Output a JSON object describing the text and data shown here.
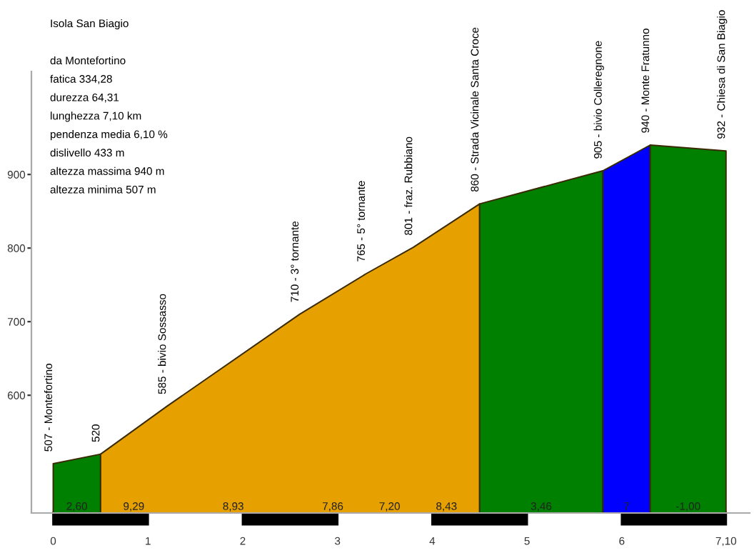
{
  "chart_data": {
    "type": "area",
    "title": "Isola San Biagio",
    "series": [
      {
        "color": "#008000",
        "x": [
          0,
          0.5
        ],
        "values": [
          507,
          520
        ]
      },
      {
        "color": "#e6a000",
        "x": [
          0.5,
          1.2,
          2.6,
          3.3,
          3.8,
          4.5
        ],
        "values": [
          520,
          585,
          710,
          765,
          801,
          860
        ]
      },
      {
        "color": "#008000",
        "x": [
          4.5,
          5.8
        ],
        "values": [
          860,
          905
        ]
      },
      {
        "color": "#0000ff",
        "x": [
          5.8,
          6.3
        ],
        "values": [
          905,
          940
        ]
      },
      {
        "color": "#008000",
        "x": [
          6.3,
          7.1
        ],
        "values": [
          940,
          932
        ]
      }
    ],
    "xlim": [
      -0.23,
      7.35
    ],
    "ylim": [
      440,
      1040
    ],
    "xticks": [
      0,
      1,
      2,
      3,
      4,
      5,
      6,
      {
        "value": 7.1,
        "label": "7,10"
      }
    ],
    "yticks": [
      600,
      700,
      800,
      900
    ],
    "grid": false,
    "legend": false,
    "annotations": [
      "da Montefortino",
      "fatica 334,28",
      "durezza 64,31",
      "lunghezza 7,10 km",
      "pendenza media 6,10 %",
      "dislivello 433 m",
      "altezza massima 940 m",
      "altezza minima 507 m",
      {
        "text": "507 - Montefortino",
        "x": 0,
        "y": 507
      },
      {
        "text": "520",
        "x": 0.5,
        "y": 520
      },
      {
        "text": "585 - bivio Sossasso",
        "x": 1.2,
        "y": 585
      },
      {
        "text": "710 - 3° tornante",
        "x": 2.6,
        "y": 710
      },
      {
        "text": "765 - 5° tornante",
        "x": 3.3,
        "y": 765
      },
      {
        "text": "801 - fraz. Rubbiano",
        "x": 3.8,
        "y": 801
      },
      {
        "text": "860 - Strada Vicinale Santa Croce",
        "x": 4.5,
        "y": 860
      },
      {
        "text": "905 - bivio Colleregnone",
        "x": 5.8,
        "y": 905
      },
      {
        "text": "940 - Monte Fratunno",
        "x": 6.3,
        "y": 940
      },
      {
        "text": "932 - Chiesa di San Biagio",
        "x": 7.1,
        "y": 932
      },
      {
        "text": "2,60",
        "x": 0.25,
        "y": 448
      },
      {
        "text": "9,29",
        "x": 0.85,
        "y": 448
      },
      {
        "text": "8,93",
        "x": 1.9,
        "y": 448
      },
      {
        "text": "7,86",
        "x": 2.95,
        "y": 448
      },
      {
        "text": "7,20",
        "x": 3.55,
        "y": 448
      },
      {
        "text": "8,43",
        "x": 4.15,
        "y": 448
      },
      {
        "text": "3,46",
        "x": 5.15,
        "y": 448
      },
      {
        "text": "7",
        "x": 6.05,
        "y": 448
      },
      {
        "text": "-1,00",
        "x": 6.7,
        "y": 448
      }
    ]
  }
}
